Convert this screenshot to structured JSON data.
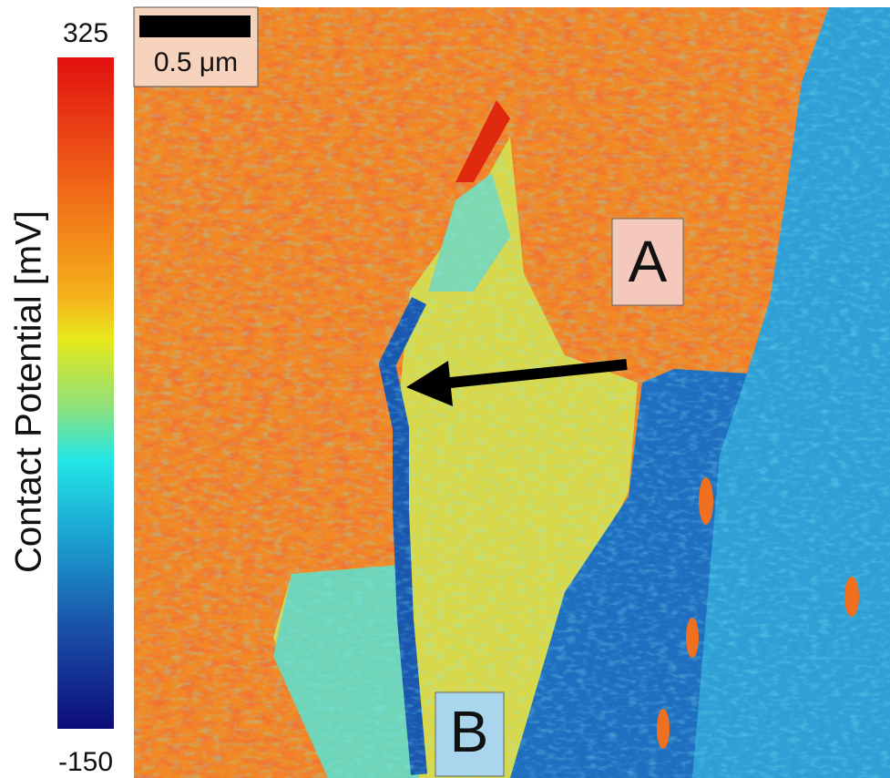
{
  "colorbar": {
    "max": 325,
    "min": -150,
    "label": "Contact Potential [mV]"
  },
  "scale_bar": {
    "label": "0.5 μm"
  },
  "annotations": [
    {
      "label": "A"
    },
    {
      "label": "B"
    }
  ]
}
